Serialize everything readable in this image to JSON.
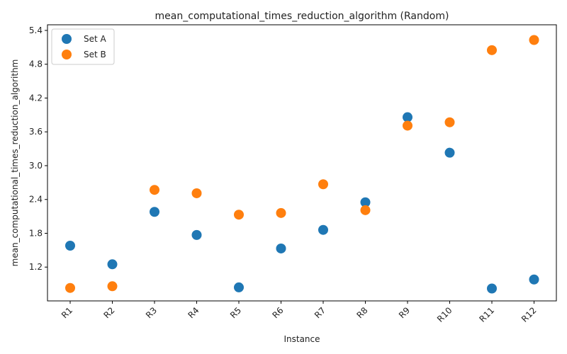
{
  "chart_data": {
    "type": "scatter",
    "title": "mean_computational_times_reduction_algorithm (Random)",
    "xlabel": "Instance",
    "ylabel": "mean_computational_times_reduction_algorithm",
    "categories": [
      "R1",
      "R2",
      "R3",
      "R4",
      "R5",
      "R6",
      "R7",
      "R8",
      "R9",
      "R10",
      "R11",
      "R12"
    ],
    "ylim": [
      0.6,
      5.5
    ],
    "yticks": [
      1.2,
      1.8,
      2.4,
      3.0,
      3.6,
      4.2,
      4.8,
      5.4
    ],
    "ytick_labels": [
      "1.2",
      "1.8",
      "2.4",
      "3.0",
      "3.6",
      "4.2",
      "4.8",
      "5.4"
    ],
    "grid": false,
    "legend_position": "top-left",
    "series": [
      {
        "name": "Set A",
        "color": "#1f77b4",
        "values": [
          1.58,
          1.25,
          2.18,
          1.77,
          0.84,
          1.53,
          1.86,
          2.35,
          3.86,
          3.23,
          0.82,
          0.98
        ]
      },
      {
        "name": "Set B",
        "color": "#ff7f0e",
        "values": [
          0.83,
          0.86,
          2.57,
          2.51,
          2.13,
          2.16,
          2.67,
          2.21,
          3.71,
          3.77,
          5.05,
          5.23
        ]
      }
    ]
  }
}
